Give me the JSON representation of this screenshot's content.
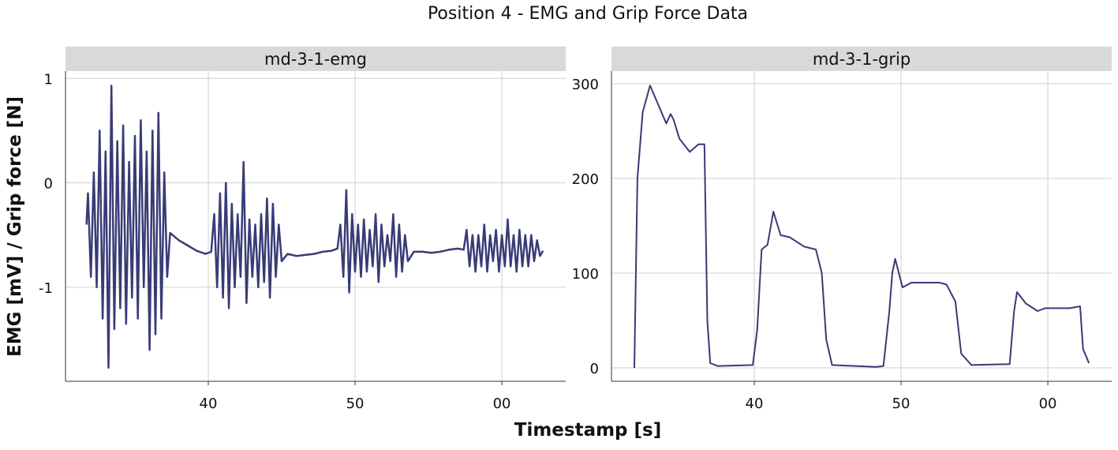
{
  "figure": {
    "title": "Position 4 - EMG and Grip Force Data",
    "x_label": "Timestamp [s]",
    "y_label": "EMG [mV] / Grip force [N]"
  },
  "chart_data": [
    {
      "type": "line",
      "title": "md-3-1-emg",
      "color": "#383b76",
      "grid": true,
      "xlim": [
        30.27,
        64.35
      ],
      "xticks": [
        40,
        50,
        {
          "value": 60,
          "label": "00"
        }
      ],
      "ylim": [
        -1.9,
        1.07
      ],
      "yticks": [
        -1,
        0,
        1
      ],
      "x": [
        31.7,
        31.8,
        32.0,
        32.2,
        32.4,
        32.6,
        32.8,
        33.0,
        33.2,
        33.4,
        33.6,
        33.8,
        34.0,
        34.2,
        34.4,
        34.6,
        34.8,
        35.0,
        35.2,
        35.4,
        35.6,
        35.8,
        36.0,
        36.2,
        36.4,
        36.6,
        36.8,
        37.0,
        37.2,
        37.4,
        38.0,
        38.6,
        39.2,
        39.8,
        40.2,
        40.4,
        40.6,
        40.8,
        41.0,
        41.2,
        41.4,
        41.6,
        41.8,
        42.0,
        42.2,
        42.4,
        42.6,
        42.8,
        43.0,
        43.2,
        43.4,
        43.6,
        43.8,
        44.0,
        44.2,
        44.4,
        44.6,
        44.8,
        45.0,
        45.4,
        46.0,
        46.6,
        47.2,
        47.8,
        48.4,
        48.8,
        49.0,
        49.2,
        49.4,
        49.6,
        49.8,
        50.0,
        50.2,
        50.4,
        50.6,
        50.8,
        51.0,
        51.2,
        51.4,
        51.6,
        51.8,
        52.0,
        52.2,
        52.4,
        52.6,
        52.8,
        53.0,
        53.2,
        53.4,
        53.6,
        54.0,
        54.6,
        55.2,
        55.8,
        56.4,
        57.0,
        57.4,
        57.6,
        57.8,
        58.0,
        58.2,
        58.4,
        58.6,
        58.8,
        59.0,
        59.2,
        59.4,
        59.6,
        59.8,
        60.0,
        60.2,
        60.4,
        60.6,
        60.8,
        61.0,
        61.2,
        61.4,
        61.6,
        61.8,
        62.0,
        62.2,
        62.4,
        62.6,
        62.8
      ],
      "values": [
        -0.4,
        -0.1,
        -0.9,
        0.1,
        -1.0,
        0.5,
        -1.3,
        0.3,
        -1.77,
        0.93,
        -1.4,
        0.4,
        -1.2,
        0.55,
        -1.35,
        0.2,
        -1.1,
        0.45,
        -1.3,
        0.6,
        -1.0,
        0.3,
        -1.6,
        0.5,
        -1.45,
        0.67,
        -1.3,
        0.1,
        -0.9,
        -0.48,
        -0.55,
        -0.6,
        -0.65,
        -0.68,
        -0.66,
        -0.3,
        -1.0,
        -0.1,
        -1.1,
        0.0,
        -1.2,
        -0.2,
        -1.0,
        -0.3,
        -0.9,
        0.2,
        -1.15,
        -0.35,
        -0.9,
        -0.4,
        -1.0,
        -0.3,
        -0.95,
        -0.15,
        -1.1,
        -0.2,
        -0.9,
        -0.4,
        -0.75,
        -0.68,
        -0.7,
        -0.69,
        -0.68,
        -0.66,
        -0.65,
        -0.63,
        -0.4,
        -0.9,
        -0.07,
        -1.05,
        -0.3,
        -0.85,
        -0.4,
        -0.9,
        -0.35,
        -0.85,
        -0.45,
        -0.8,
        -0.3,
        -0.95,
        -0.4,
        -0.8,
        -0.5,
        -0.75,
        -0.3,
        -0.9,
        -0.4,
        -0.85,
        -0.5,
        -0.75,
        -0.66,
        -0.66,
        -0.67,
        -0.66,
        -0.64,
        -0.63,
        -0.64,
        -0.45,
        -0.8,
        -0.5,
        -0.85,
        -0.5,
        -0.8,
        -0.4,
        -0.85,
        -0.5,
        -0.75,
        -0.45,
        -0.85,
        -0.5,
        -0.8,
        -0.35,
        -0.8,
        -0.5,
        -0.85,
        -0.45,
        -0.8,
        -0.5,
        -0.8,
        -0.5,
        -0.75,
        -0.55,
        -0.7,
        -0.65
      ]
    },
    {
      "type": "line",
      "title": "md-3-1-grip",
      "color": "#383b76",
      "grid": true,
      "xlim": [
        30.27,
        64.35
      ],
      "xticks": [
        40,
        50,
        {
          "value": 60,
          "label": "00"
        }
      ],
      "ylim": [
        -14.2,
        313.3
      ],
      "yticks": [
        0,
        100,
        200,
        300
      ],
      "x": [
        31.83,
        32.04,
        32.4,
        32.9,
        33.4,
        34.0,
        34.3,
        34.5,
        34.9,
        35.6,
        36.2,
        36.6,
        36.8,
        37.0,
        37.5,
        39.9,
        40.2,
        40.5,
        40.9,
        41.3,
        41.8,
        42.4,
        43.4,
        44.2,
        44.6,
        44.9,
        45.3,
        48.3,
        48.8,
        49.2,
        49.4,
        49.6,
        50.1,
        50.7,
        52.6,
        53.1,
        53.7,
        54.1,
        54.8,
        57.4,
        57.7,
        57.9,
        58.5,
        59.3,
        59.8,
        61.5,
        62.2,
        62.4,
        62.8
      ],
      "values": [
        0,
        200,
        270,
        298,
        280,
        258,
        268,
        262,
        242,
        228,
        236,
        236,
        50,
        5,
        2,
        3,
        40,
        125,
        130,
        165,
        140,
        138,
        128,
        125,
        100,
        30,
        3,
        1,
        2,
        60,
        100,
        115,
        85,
        90,
        90,
        88,
        70,
        15,
        3,
        4,
        60,
        80,
        68,
        60,
        63,
        63,
        65,
        20,
        5
      ]
    }
  ]
}
